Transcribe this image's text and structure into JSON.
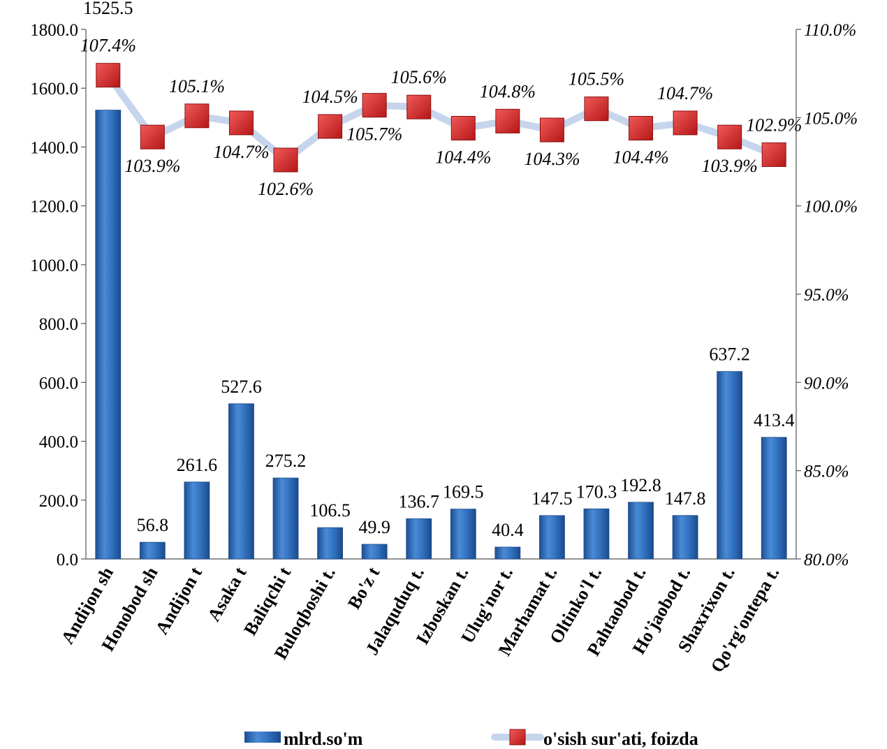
{
  "chart_data": {
    "type": "bar",
    "categories": [
      "Andijon sh",
      "Honobod sh",
      "Andijon t",
      "Asaka t",
      "Baliqchi t",
      "Buloqboshi t.",
      "Bo'z t",
      "Jalaquduq t.",
      "Izboskan t.",
      "Ulug'nor t.",
      "Marhamat t.",
      "Oltinko'l t.",
      "Pahtaobod t.",
      "Ho'jaobod t.",
      "Shaxrixon t.",
      "Qo'rg'ontepa t."
    ],
    "series": [
      {
        "name": "mlrd.so'm",
        "type": "bar",
        "axis": "left",
        "color": "#2e6fbd",
        "values": [
          1525.5,
          56.8,
          261.6,
          527.6,
          275.2,
          106.5,
          49.9,
          136.7,
          169.5,
          40.4,
          147.5,
          170.3,
          192.8,
          147.8,
          637.2,
          413.4
        ],
        "labels": [
          "1525.5",
          "56.8",
          "261.6",
          "527.6",
          "275.2",
          "106.5",
          "49.9",
          "136.7",
          "169.5",
          "40.4",
          "147.5",
          "170.3",
          "192.8",
          "147.8",
          "637.2",
          "413.4"
        ]
      },
      {
        "name": "o'sish sur'ati, foizda",
        "type": "line",
        "axis": "right",
        "line_color": "#c6d5ec",
        "marker_color": "#d42424",
        "values": [
          107.4,
          103.9,
          105.1,
          104.7,
          102.6,
          104.5,
          105.7,
          105.6,
          104.4,
          104.8,
          104.3,
          105.5,
          104.4,
          104.7,
          103.9,
          102.9
        ],
        "labels": [
          "107.4%",
          "103.9%",
          "105.1%",
          "104.7%",
          "102.6%",
          "104.5%",
          "105.7%",
          "105.6%",
          "104.4%",
          "104.8%",
          "104.3%",
          "105.5%",
          "104.4%",
          "104.7%",
          "103.9%",
          "102.9%"
        ]
      }
    ],
    "y_left": {
      "min": 0,
      "max": 1800,
      "step": 200,
      "ticks": [
        "0.0",
        "200.0",
        "400.0",
        "600.0",
        "800.0",
        "1000.0",
        "1200.0",
        "1400.0",
        "1600.0",
        "1800.0"
      ]
    },
    "y_right": {
      "min": 80,
      "max": 110,
      "step": 5,
      "ticks": [
        "80.0%",
        "85.0%",
        "90.0%",
        "95.0%",
        "100.0%",
        "105.0%",
        "110.0%"
      ]
    },
    "grid": false,
    "legend_position": "bottom"
  }
}
